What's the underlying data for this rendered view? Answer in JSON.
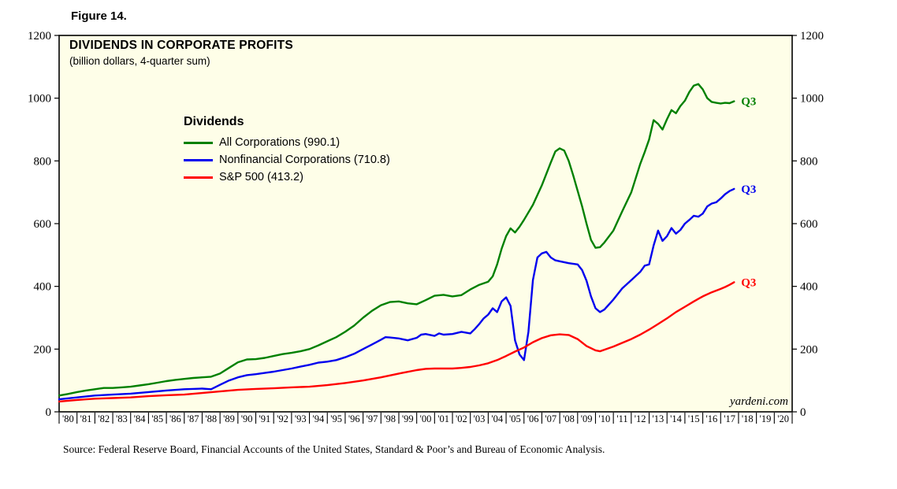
{
  "labels": {
    "figure": "Figure 14."
  },
  "source_note": "Source: Federal Reserve Board, Financial Accounts of the United States, Standard & Poor’s and Bureau of Economic Analysis.",
  "chart_data": {
    "type": "line",
    "title": "DIVIDENDS IN CORPORATE PROFITS",
    "subtitle": "(billion dollars, 4-quarter sum)",
    "watermark": "yardeni.com",
    "plot_bg": "#fefee8",
    "border_color": "#000000",
    "ylim": [
      0,
      1200
    ],
    "ytick_step": 200,
    "x_range": [
      1980,
      2021
    ],
    "x_tick_labels": [
      "'80",
      "'81",
      "'82",
      "'83",
      "'84",
      "'85",
      "'86",
      "'87",
      "'88",
      "'89",
      "'90",
      "'91",
      "'92",
      "'93",
      "'94",
      "'95",
      "'96",
      "'97",
      "'98",
      "'99",
      "'00",
      "'01",
      "'02",
      "'03",
      "'04",
      "'05",
      "'06",
      "'07",
      "'08",
      "'09",
      "'10",
      "'11",
      "'12",
      "'13",
      "'14",
      "'15",
      "'16",
      "'17",
      "'18",
      "'19",
      "'20"
    ],
    "grid": false,
    "legend": {
      "title": "Dividends",
      "position": "upper-left-inside"
    },
    "series": [
      {
        "name": "All Corporations (990.1)",
        "color": "#008000",
        "end_label": "Q3",
        "last_value": 990.1,
        "points": [
          [
            1980,
            52
          ],
          [
            1980.5,
            57
          ],
          [
            1981,
            63
          ],
          [
            1981.5,
            68
          ],
          [
            1982,
            72
          ],
          [
            1982.5,
            76
          ],
          [
            1983,
            76
          ],
          [
            1983.5,
            78
          ],
          [
            1984,
            80
          ],
          [
            1984.5,
            84
          ],
          [
            1985,
            88
          ],
          [
            1985.5,
            93
          ],
          [
            1986,
            98
          ],
          [
            1986.5,
            102
          ],
          [
            1987,
            105
          ],
          [
            1987.5,
            108
          ],
          [
            1988,
            110
          ],
          [
            1988.5,
            112
          ],
          [
            1989,
            122
          ],
          [
            1989.5,
            140
          ],
          [
            1990,
            158
          ],
          [
            1990.5,
            167
          ],
          [
            1991,
            168
          ],
          [
            1991.5,
            172
          ],
          [
            1992,
            178
          ],
          [
            1992.5,
            184
          ],
          [
            1993,
            188
          ],
          [
            1993.5,
            193
          ],
          [
            1994,
            200
          ],
          [
            1994.5,
            212
          ],
          [
            1995,
            225
          ],
          [
            1995.5,
            238
          ],
          [
            1996,
            255
          ],
          [
            1996.5,
            275
          ],
          [
            1997,
            300
          ],
          [
            1997.5,
            322
          ],
          [
            1998,
            340
          ],
          [
            1998.5,
            350
          ],
          [
            1999,
            352
          ],
          [
            1999.5,
            346
          ],
          [
            2000,
            343
          ],
          [
            2000.5,
            356
          ],
          [
            2001,
            370
          ],
          [
            2001.5,
            373
          ],
          [
            2002,
            368
          ],
          [
            2002.5,
            372
          ],
          [
            2003,
            390
          ],
          [
            2003.5,
            405
          ],
          [
            2004,
            415
          ],
          [
            2004.25,
            432
          ],
          [
            2004.5,
            470
          ],
          [
            2004.75,
            520
          ],
          [
            2005,
            560
          ],
          [
            2005.25,
            585
          ],
          [
            2005.5,
            572
          ],
          [
            2005.75,
            590
          ],
          [
            2006,
            612
          ],
          [
            2006.5,
            660
          ],
          [
            2007,
            722
          ],
          [
            2007.5,
            795
          ],
          [
            2007.75,
            830
          ],
          [
            2008,
            840
          ],
          [
            2008.25,
            833
          ],
          [
            2008.5,
            800
          ],
          [
            2008.75,
            755
          ],
          [
            2009,
            705
          ],
          [
            2009.25,
            655
          ],
          [
            2009.5,
            600
          ],
          [
            2009.75,
            548
          ],
          [
            2010,
            523
          ],
          [
            2010.25,
            525
          ],
          [
            2010.5,
            540
          ],
          [
            2011,
            578
          ],
          [
            2011.5,
            640
          ],
          [
            2012,
            700
          ],
          [
            2012.5,
            790
          ],
          [
            2012.75,
            828
          ],
          [
            2013,
            868
          ],
          [
            2013.25,
            930
          ],
          [
            2013.5,
            918
          ],
          [
            2013.75,
            900
          ],
          [
            2014,
            933
          ],
          [
            2014.25,
            962
          ],
          [
            2014.5,
            952
          ],
          [
            2014.75,
            975
          ],
          [
            2015,
            992
          ],
          [
            2015.25,
            1020
          ],
          [
            2015.5,
            1040
          ],
          [
            2015.75,
            1045
          ],
          [
            2016,
            1028
          ],
          [
            2016.25,
            1000
          ],
          [
            2016.5,
            988
          ],
          [
            2016.75,
            985
          ],
          [
            2017,
            983
          ],
          [
            2017.25,
            985
          ],
          [
            2017.5,
            984
          ],
          [
            2017.75,
            990.1
          ]
        ]
      },
      {
        "name": "Nonfinancial Corporations (710.8)",
        "color": "#0000ee",
        "end_label": "Q3",
        "last_value": 710.8,
        "points": [
          [
            1980,
            40
          ],
          [
            1981,
            46
          ],
          [
            1982,
            52
          ],
          [
            1983,
            55
          ],
          [
            1984,
            58
          ],
          [
            1985,
            63
          ],
          [
            1986,
            68
          ],
          [
            1987,
            72
          ],
          [
            1988,
            74
          ],
          [
            1988.5,
            72
          ],
          [
            1989,
            86
          ],
          [
            1989.5,
            100
          ],
          [
            1990,
            110
          ],
          [
            1990.5,
            117
          ],
          [
            1991,
            120
          ],
          [
            1991.5,
            124
          ],
          [
            1992,
            128
          ],
          [
            1992.5,
            133
          ],
          [
            1993,
            138
          ],
          [
            1993.5,
            144
          ],
          [
            1994,
            150
          ],
          [
            1994.5,
            157
          ],
          [
            1995,
            160
          ],
          [
            1995.5,
            165
          ],
          [
            1996,
            174
          ],
          [
            1996.5,
            185
          ],
          [
            1997,
            200
          ],
          [
            1997.5,
            215
          ],
          [
            1998,
            230
          ],
          [
            1998.25,
            238
          ],
          [
            1998.5,
            237
          ],
          [
            1999,
            234
          ],
          [
            1999.5,
            228
          ],
          [
            2000,
            236
          ],
          [
            2000.25,
            246
          ],
          [
            2000.5,
            248
          ],
          [
            2001,
            242
          ],
          [
            2001.25,
            250
          ],
          [
            2001.5,
            246
          ],
          [
            2002,
            248
          ],
          [
            2002.5,
            255
          ],
          [
            2003,
            250
          ],
          [
            2003.25,
            264
          ],
          [
            2003.5,
            280
          ],
          [
            2003.75,
            298
          ],
          [
            2004,
            310
          ],
          [
            2004.25,
            330
          ],
          [
            2004.5,
            318
          ],
          [
            2004.75,
            352
          ],
          [
            2005,
            365
          ],
          [
            2005.25,
            338
          ],
          [
            2005.5,
            228
          ],
          [
            2005.75,
            183
          ],
          [
            2006,
            165
          ],
          [
            2006.25,
            255
          ],
          [
            2006.5,
            420
          ],
          [
            2006.75,
            492
          ],
          [
            2007,
            505
          ],
          [
            2007.25,
            510
          ],
          [
            2007.5,
            492
          ],
          [
            2007.75,
            483
          ],
          [
            2008,
            480
          ],
          [
            2008.5,
            474
          ],
          [
            2009,
            470
          ],
          [
            2009.25,
            452
          ],
          [
            2009.5,
            418
          ],
          [
            2009.75,
            368
          ],
          [
            2010,
            330
          ],
          [
            2010.25,
            318
          ],
          [
            2010.5,
            326
          ],
          [
            2011,
            358
          ],
          [
            2011.5,
            394
          ],
          [
            2012,
            420
          ],
          [
            2012.5,
            446
          ],
          [
            2012.75,
            466
          ],
          [
            2013,
            470
          ],
          [
            2013.25,
            530
          ],
          [
            2013.5,
            578
          ],
          [
            2013.75,
            545
          ],
          [
            2014,
            560
          ],
          [
            2014.25,
            586
          ],
          [
            2014.5,
            568
          ],
          [
            2014.75,
            580
          ],
          [
            2015,
            600
          ],
          [
            2015.25,
            612
          ],
          [
            2015.5,
            625
          ],
          [
            2015.75,
            622
          ],
          [
            2016,
            632
          ],
          [
            2016.25,
            655
          ],
          [
            2016.5,
            664
          ],
          [
            2016.75,
            668
          ],
          [
            2017,
            680
          ],
          [
            2017.25,
            694
          ],
          [
            2017.5,
            704
          ],
          [
            2017.75,
            710.8
          ]
        ]
      },
      {
        "name": "S&P 500 (413.2)",
        "color": "#ff0000",
        "end_label": "Q3",
        "last_value": 413.2,
        "points": [
          [
            1980,
            33
          ],
          [
            1981,
            38
          ],
          [
            1982,
            42
          ],
          [
            1983,
            44
          ],
          [
            1984,
            46
          ],
          [
            1985,
            50
          ],
          [
            1986,
            53
          ],
          [
            1987,
            55
          ],
          [
            1988,
            60
          ],
          [
            1989,
            65
          ],
          [
            1990,
            70
          ],
          [
            1991,
            73
          ],
          [
            1992,
            75
          ],
          [
            1993,
            78
          ],
          [
            1994,
            80
          ],
          [
            1995,
            85
          ],
          [
            1996,
            92
          ],
          [
            1997,
            100
          ],
          [
            1998,
            110
          ],
          [
            1999,
            122
          ],
          [
            2000,
            133
          ],
          [
            2000.5,
            137
          ],
          [
            2001,
            138
          ],
          [
            2002,
            138
          ],
          [
            2002.5,
            140
          ],
          [
            2003,
            143
          ],
          [
            2003.5,
            148
          ],
          [
            2004,
            155
          ],
          [
            2004.5,
            165
          ],
          [
            2005,
            178
          ],
          [
            2005.5,
            192
          ],
          [
            2006,
            205
          ],
          [
            2006.5,
            222
          ],
          [
            2007,
            235
          ],
          [
            2007.5,
            244
          ],
          [
            2008,
            247
          ],
          [
            2008.5,
            245
          ],
          [
            2009,
            232
          ],
          [
            2009.5,
            210
          ],
          [
            2010,
            196
          ],
          [
            2010.25,
            193
          ],
          [
            2010.5,
            198
          ],
          [
            2011,
            208
          ],
          [
            2011.5,
            220
          ],
          [
            2012,
            232
          ],
          [
            2012.5,
            246
          ],
          [
            2013,
            262
          ],
          [
            2013.5,
            280
          ],
          [
            2014,
            298
          ],
          [
            2014.5,
            318
          ],
          [
            2015,
            335
          ],
          [
            2015.5,
            352
          ],
          [
            2016,
            368
          ],
          [
            2016.5,
            381
          ],
          [
            2017,
            392
          ],
          [
            2017.25,
            398
          ],
          [
            2017.5,
            405
          ],
          [
            2017.75,
            413.2
          ]
        ]
      }
    ]
  }
}
